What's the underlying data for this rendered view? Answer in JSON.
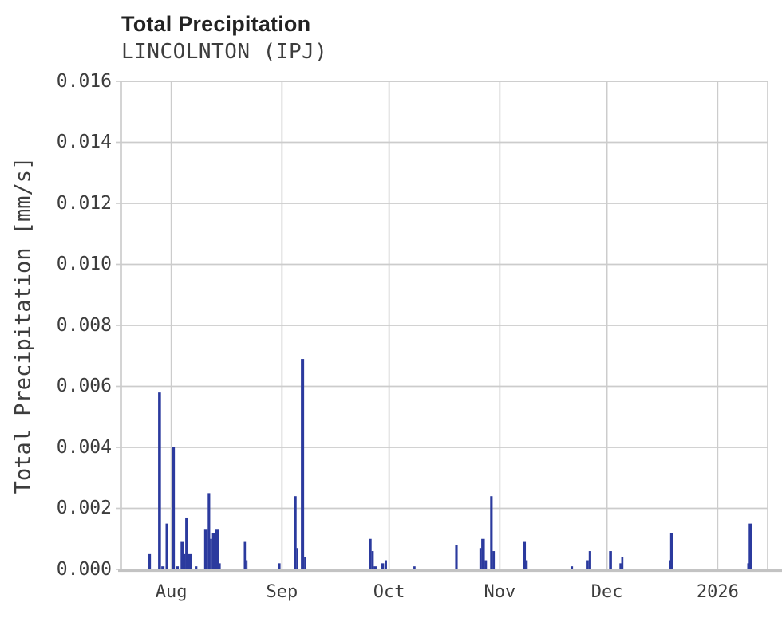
{
  "chart_data": {
    "type": "bar",
    "title": "Total Precipitation",
    "subtitle": "LINCOLNTON (IPJ)",
    "ylabel": "Total Precipitation [mm/s]",
    "xlabel": "",
    "unit": "mm/s",
    "ylim": [
      0,
      0.016
    ],
    "grid": true,
    "legend": false,
    "colors": {
      "bar": "#2b3a9e",
      "grid": "#cccccc",
      "axis_line": "#c3c3c3",
      "title_text": "#222222",
      "tick_text": "#3d3d3d"
    },
    "yticks": [
      {
        "value": 0.0,
        "label": "0.000"
      },
      {
        "value": 0.002,
        "label": "0.002"
      },
      {
        "value": 0.004,
        "label": "0.004"
      },
      {
        "value": 0.006,
        "label": "0.006"
      },
      {
        "value": 0.008,
        "label": "0.008"
      },
      {
        "value": 0.01,
        "label": "0.010"
      },
      {
        "value": 0.012,
        "label": "0.012"
      },
      {
        "value": 0.014,
        "label": "0.014"
      },
      {
        "value": 0.016,
        "label": "0.016"
      }
    ],
    "x_domain": {
      "start": "2025-07-18",
      "end": "2026-01-15",
      "total_days": 181
    },
    "xticks": [
      {
        "day_offset": 14,
        "label": "Aug",
        "date": "2025-08-01"
      },
      {
        "day_offset": 45,
        "label": "Sep",
        "date": "2025-09-01"
      },
      {
        "day_offset": 75,
        "label": "Oct",
        "date": "2025-10-01"
      },
      {
        "day_offset": 106,
        "label": "Nov",
        "date": "2025-11-01"
      },
      {
        "day_offset": 136,
        "label": "Dec",
        "date": "2025-12-01"
      },
      {
        "day_offset": 167,
        "label": "2026",
        "date": "2026-01-01"
      }
    ],
    "bars": [
      {
        "date": "2025-07-26",
        "offset_days": 7.6,
        "width_days": 0.7,
        "value": 0.0005
      },
      {
        "date": "2025-07-28",
        "offset_days": 10.3,
        "width_days": 0.8,
        "value": 0.0058
      },
      {
        "date": "2025-07-29",
        "offset_days": 11.2,
        "width_days": 0.9,
        "value": 0.0001
      },
      {
        "date": "2025-07-30",
        "offset_days": 12.4,
        "width_days": 0.7,
        "value": 0.0015
      },
      {
        "date": "2025-08-01",
        "offset_days": 14.3,
        "width_days": 0.7,
        "value": 0.004
      },
      {
        "date": "2025-08-02",
        "offset_days": 15.2,
        "width_days": 0.9,
        "value": 0.0001
      },
      {
        "date": "2025-08-03",
        "offset_days": 16.6,
        "width_days": 0.9,
        "value": 0.0009
      },
      {
        "date": "2025-08-04",
        "offset_days": 17.5,
        "width_days": 0.4,
        "value": 0.0005
      },
      {
        "date": "2025-08-04",
        "offset_days": 17.9,
        "width_days": 0.7,
        "value": 0.0017
      },
      {
        "date": "2025-08-05",
        "offset_days": 18.6,
        "width_days": 1.1,
        "value": 0.0005
      },
      {
        "date": "2025-08-07",
        "offset_days": 20.8,
        "width_days": 0.5,
        "value": 0.0001
      },
      {
        "date": "2025-08-10",
        "offset_days": 23.2,
        "width_days": 1.0,
        "value": 0.0013
      },
      {
        "date": "2025-08-11",
        "offset_days": 24.2,
        "width_days": 0.7,
        "value": 0.0025
      },
      {
        "date": "2025-08-11",
        "offset_days": 24.9,
        "width_days": 0.5,
        "value": 0.001
      },
      {
        "date": "2025-08-12",
        "offset_days": 25.4,
        "width_days": 0.9,
        "value": 0.0012
      },
      {
        "date": "2025-08-13",
        "offset_days": 26.3,
        "width_days": 1.1,
        "value": 0.0013
      },
      {
        "date": "2025-08-14",
        "offset_days": 27.4,
        "width_days": 0.4,
        "value": 0.0002
      },
      {
        "date": "2025-08-21",
        "offset_days": 34.3,
        "width_days": 0.6,
        "value": 0.0009
      },
      {
        "date": "2025-08-21",
        "offset_days": 34.9,
        "width_days": 0.4,
        "value": 0.0003
      },
      {
        "date": "2025-08-31",
        "offset_days": 44.0,
        "width_days": 0.6,
        "value": 0.0002
      },
      {
        "date": "2025-09-04",
        "offset_days": 48.4,
        "width_days": 0.7,
        "value": 0.0024
      },
      {
        "date": "2025-09-05",
        "offset_days": 49.1,
        "width_days": 0.5,
        "value": 0.0007
      },
      {
        "date": "2025-09-06",
        "offset_days": 50.3,
        "width_days": 0.9,
        "value": 0.0069
      },
      {
        "date": "2025-09-07",
        "offset_days": 51.2,
        "width_days": 0.5,
        "value": 0.0004
      },
      {
        "date": "2025-09-25",
        "offset_days": 69.3,
        "width_days": 0.8,
        "value": 0.001
      },
      {
        "date": "2025-09-26",
        "offset_days": 70.1,
        "width_days": 0.6,
        "value": 0.0006
      },
      {
        "date": "2025-09-26",
        "offset_days": 70.7,
        "width_days": 0.8,
        "value": 0.0001
      },
      {
        "date": "2025-09-28",
        "offset_days": 72.8,
        "width_days": 0.8,
        "value": 0.0002
      },
      {
        "date": "2025-09-29",
        "offset_days": 73.8,
        "width_days": 0.6,
        "value": 0.0003
      },
      {
        "date": "2025-10-07",
        "offset_days": 81.8,
        "width_days": 0.6,
        "value": 0.0001
      },
      {
        "date": "2025-10-19",
        "offset_days": 93.5,
        "width_days": 0.7,
        "value": 0.0008
      },
      {
        "date": "2025-10-26",
        "offset_days": 100.3,
        "width_days": 0.5,
        "value": 0.0007
      },
      {
        "date": "2025-10-26",
        "offset_days": 100.8,
        "width_days": 1.0,
        "value": 0.001
      },
      {
        "date": "2025-10-27",
        "offset_days": 101.8,
        "width_days": 0.6,
        "value": 0.0003
      },
      {
        "date": "2025-10-29",
        "offset_days": 103.3,
        "width_days": 0.7,
        "value": 0.0024
      },
      {
        "date": "2025-10-30",
        "offset_days": 104.0,
        "width_days": 0.6,
        "value": 0.0006
      },
      {
        "date": "2025-11-07",
        "offset_days": 112.6,
        "width_days": 0.7,
        "value": 0.0009
      },
      {
        "date": "2025-11-08",
        "offset_days": 113.3,
        "width_days": 0.5,
        "value": 0.0003
      },
      {
        "date": "2025-11-20",
        "offset_days": 125.8,
        "width_days": 0.7,
        "value": 0.0001
      },
      {
        "date": "2025-11-25",
        "offset_days": 130.3,
        "width_days": 0.6,
        "value": 0.0003
      },
      {
        "date": "2025-11-25",
        "offset_days": 130.9,
        "width_days": 0.7,
        "value": 0.0006
      },
      {
        "date": "2025-12-01",
        "offset_days": 136.6,
        "width_days": 0.8,
        "value": 0.0006
      },
      {
        "date": "2025-12-04",
        "offset_days": 139.5,
        "width_days": 0.5,
        "value": 0.0002
      },
      {
        "date": "2025-12-05",
        "offset_days": 140.0,
        "width_days": 0.6,
        "value": 0.0004
      },
      {
        "date": "2025-12-18",
        "offset_days": 153.3,
        "width_days": 0.4,
        "value": 0.0003
      },
      {
        "date": "2025-12-18",
        "offset_days": 153.7,
        "width_days": 0.8,
        "value": 0.0012
      },
      {
        "date": "2026-01-09",
        "offset_days": 175.3,
        "width_days": 0.4,
        "value": 0.0002
      },
      {
        "date": "2026-01-09",
        "offset_days": 175.7,
        "width_days": 0.9,
        "value": 0.0015
      }
    ]
  }
}
